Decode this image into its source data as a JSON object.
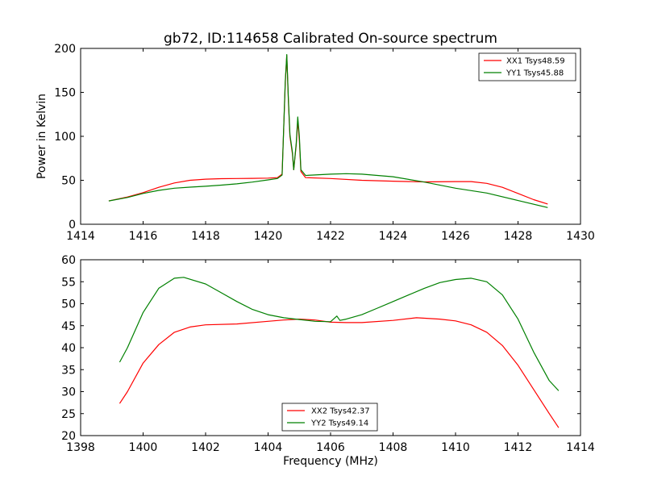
{
  "chart_data": [
    {
      "type": "line",
      "title": "gb72, ID:114658 Calibrated On-source spectrum",
      "xlabel": "",
      "ylabel": "Power in Kelvin",
      "xlim": [
        1414,
        1430
      ],
      "ylim": [
        0,
        200
      ],
      "xticks": [
        "1414",
        "1416",
        "1418",
        "1420",
        "1422",
        "1424",
        "1426",
        "1428",
        "1430"
      ],
      "yticks": [
        "0",
        "50",
        "100",
        "150",
        "200"
      ],
      "grid": false,
      "legend_position": "top-right",
      "series": [
        {
          "name": "XX1 Tsys48.59",
          "color": "#ff0000",
          "points": [
            [
              1414.9,
              26.5
            ],
            [
              1415.5,
              31
            ],
            [
              1416,
              36
            ],
            [
              1416.5,
              42
            ],
            [
              1417,
              47
            ],
            [
              1417.5,
              50
            ],
            [
              1418,
              51.3
            ],
            [
              1418.5,
              51.8
            ],
            [
              1419,
              52
            ],
            [
              1419.5,
              52.2
            ],
            [
              1420,
              52.5
            ],
            [
              1420.3,
              53
            ],
            [
              1420.45,
              57
            ],
            [
              1420.55,
              160
            ],
            [
              1420.6,
              192
            ],
            [
              1420.65,
              140
            ],
            [
              1420.7,
              100
            ],
            [
              1420.78,
              80
            ],
            [
              1420.82,
              62
            ],
            [
              1420.9,
              90
            ],
            [
              1420.95,
              118
            ],
            [
              1421,
              95
            ],
            [
              1421.05,
              60
            ],
            [
              1421.2,
              53
            ],
            [
              1422,
              52
            ],
            [
              1423,
              50
            ],
            [
              1424,
              49
            ],
            [
              1425,
              48.2
            ],
            [
              1426,
              48.5
            ],
            [
              1426.5,
              48.5
            ],
            [
              1427,
              46.5
            ],
            [
              1427.5,
              42
            ],
            [
              1428,
              35
            ],
            [
              1428.5,
              28
            ],
            [
              1428.95,
              23
            ]
          ]
        },
        {
          "name": "YY1 Tsys45.88",
          "color": "#008000",
          "points": [
            [
              1414.9,
              26.5
            ],
            [
              1415.5,
              30.5
            ],
            [
              1416,
              35
            ],
            [
              1416.5,
              38.5
            ],
            [
              1417,
              41
            ],
            [
              1417.5,
              42.2
            ],
            [
              1418,
              43.2
            ],
            [
              1418.5,
              44.5
            ],
            [
              1419,
              46
            ],
            [
              1419.5,
              48
            ],
            [
              1420,
              50.5
            ],
            [
              1420.3,
              52
            ],
            [
              1420.45,
              56
            ],
            [
              1420.55,
              162
            ],
            [
              1420.6,
              193
            ],
            [
              1420.65,
              142
            ],
            [
              1420.7,
              102
            ],
            [
              1420.78,
              82
            ],
            [
              1420.82,
              62
            ],
            [
              1420.9,
              92
            ],
            [
              1420.95,
              122
            ],
            [
              1421,
              100
            ],
            [
              1421.05,
              62
            ],
            [
              1421.2,
              55.5
            ],
            [
              1422,
              57
            ],
            [
              1422.5,
              57.5
            ],
            [
              1423,
              57
            ],
            [
              1424,
              54
            ],
            [
              1425,
              48
            ],
            [
              1426,
              41
            ],
            [
              1427,
              35.5
            ],
            [
              1428,
              27
            ],
            [
              1428.95,
              19
            ]
          ]
        }
      ]
    },
    {
      "type": "line",
      "title": "",
      "xlabel": "Frequency (MHz)",
      "ylabel": "",
      "xlim": [
        1398,
        1414
      ],
      "ylim": [
        20,
        60
      ],
      "xticks": [
        "1398",
        "1400",
        "1402",
        "1404",
        "1406",
        "1408",
        "1410",
        "1412",
        "1414"
      ],
      "yticks": [
        "20",
        "25",
        "30",
        "35",
        "40",
        "45",
        "50",
        "55",
        "60"
      ],
      "grid": false,
      "legend_position": "bottom-center",
      "series": [
        {
          "name": "XX2 Tsys42.37",
          "color": "#ff0000",
          "points": [
            [
              1399.25,
              27.3
            ],
            [
              1399.5,
              30
            ],
            [
              1400,
              36.5
            ],
            [
              1400.5,
              40.7
            ],
            [
              1401,
              43.5
            ],
            [
              1401.5,
              44.7
            ],
            [
              1402,
              45.2
            ],
            [
              1403,
              45.4
            ],
            [
              1404,
              46
            ],
            [
              1404.5,
              46.3
            ],
            [
              1405,
              46.5
            ],
            [
              1405.5,
              46.3
            ],
            [
              1406,
              45.8
            ],
            [
              1406.5,
              45.7
            ],
            [
              1407,
              45.7
            ],
            [
              1408,
              46.2
            ],
            [
              1408.75,
              46.8
            ],
            [
              1409.5,
              46.5
            ],
            [
              1410,
              46.1
            ],
            [
              1410.5,
              45.2
            ],
            [
              1411,
              43.5
            ],
            [
              1411.5,
              40.5
            ],
            [
              1412,
              36
            ],
            [
              1412.5,
              30.5
            ],
            [
              1413,
              25
            ],
            [
              1413.3,
              21.8
            ]
          ]
        },
        {
          "name": "YY2 Tsys49.14",
          "color": "#008000",
          "points": [
            [
              1399.25,
              36.7
            ],
            [
              1399.5,
              40
            ],
            [
              1400,
              48
            ],
            [
              1400.5,
              53.5
            ],
            [
              1401,
              55.8
            ],
            [
              1401.3,
              56
            ],
            [
              1402,
              54.5
            ],
            [
              1402.5,
              52.5
            ],
            [
              1403,
              50.5
            ],
            [
              1403.5,
              48.7
            ],
            [
              1404,
              47.5
            ],
            [
              1404.5,
              46.8
            ],
            [
              1405,
              46.4
            ],
            [
              1405.5,
              46
            ],
            [
              1406,
              45.9
            ],
            [
              1406.2,
              47.2
            ],
            [
              1406.3,
              46.2
            ],
            [
              1406.5,
              46.5
            ],
            [
              1407,
              47.5
            ],
            [
              1407.5,
              49
            ],
            [
              1408,
              50.5
            ],
            [
              1408.5,
              52
            ],
            [
              1409,
              53.5
            ],
            [
              1409.5,
              54.8
            ],
            [
              1410,
              55.5
            ],
            [
              1410.5,
              55.8
            ],
            [
              1411,
              55
            ],
            [
              1411.5,
              52
            ],
            [
              1412,
              46.5
            ],
            [
              1412.5,
              39
            ],
            [
              1413,
              32.5
            ],
            [
              1413.3,
              30.2
            ]
          ]
        }
      ]
    }
  ]
}
